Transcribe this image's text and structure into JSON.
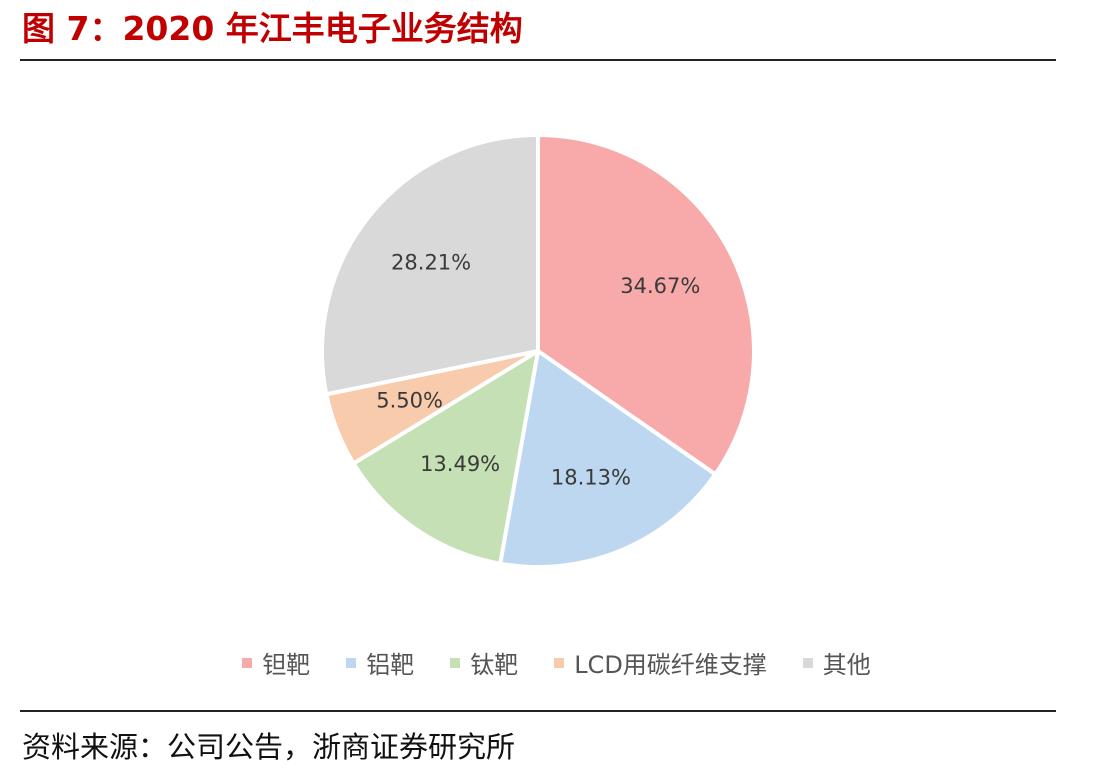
{
  "title": "图 7：2020 年江丰电子业务结构",
  "source": "资料来源：公司公告，浙商证券研究所",
  "chart_data": {
    "type": "pie",
    "labels": [
      "钽靶",
      "铝靶",
      "钛靶",
      "LCD用碳纤维支撑",
      "其他"
    ],
    "values": [
      34.67,
      18.13,
      13.49,
      5.5,
      28.21
    ],
    "value_labels": [
      "34.67%",
      "18.13%",
      "13.49%",
      "5.50%",
      "28.21%"
    ],
    "colors": [
      "#f8aaaa",
      "#bcd7ef",
      "#c5e0b4",
      "#f8cbad",
      "#d9d9d9"
    ],
    "start": "12 o'clock",
    "direction": "clockwise",
    "legend_position": "bottom"
  }
}
